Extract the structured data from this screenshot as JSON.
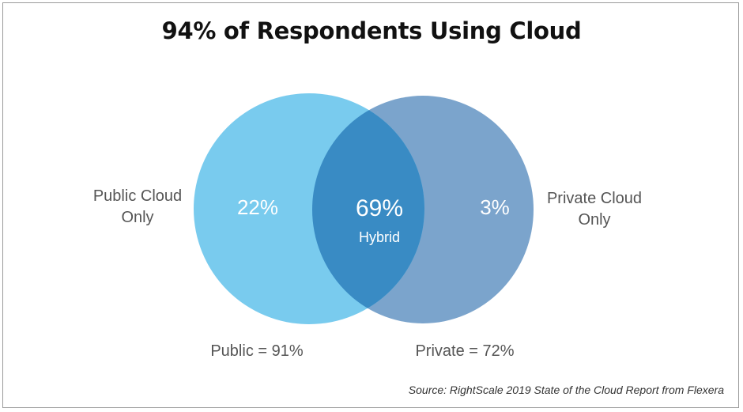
{
  "title": "94% of Respondents Using Cloud",
  "sets": {
    "public_only": {
      "label_line1": "Public Cloud",
      "label_line2": "Only",
      "value": "22%"
    },
    "hybrid": {
      "value": "69%",
      "label": "Hybrid"
    },
    "private_only": {
      "label_line1": "Private Cloud",
      "label_line2": "Only",
      "value": "3%"
    },
    "public_total": "Public = 91%",
    "private_total": "Private = 72%"
  },
  "colors": {
    "public": "#79CBEE",
    "private": "#7BA4CC",
    "overlap": "#398BC4",
    "inner_text": "#FFFFFF",
    "outer_text": "#555555"
  },
  "source": "Source: RightScale 2019 State of the Cloud Report from Flexera"
}
